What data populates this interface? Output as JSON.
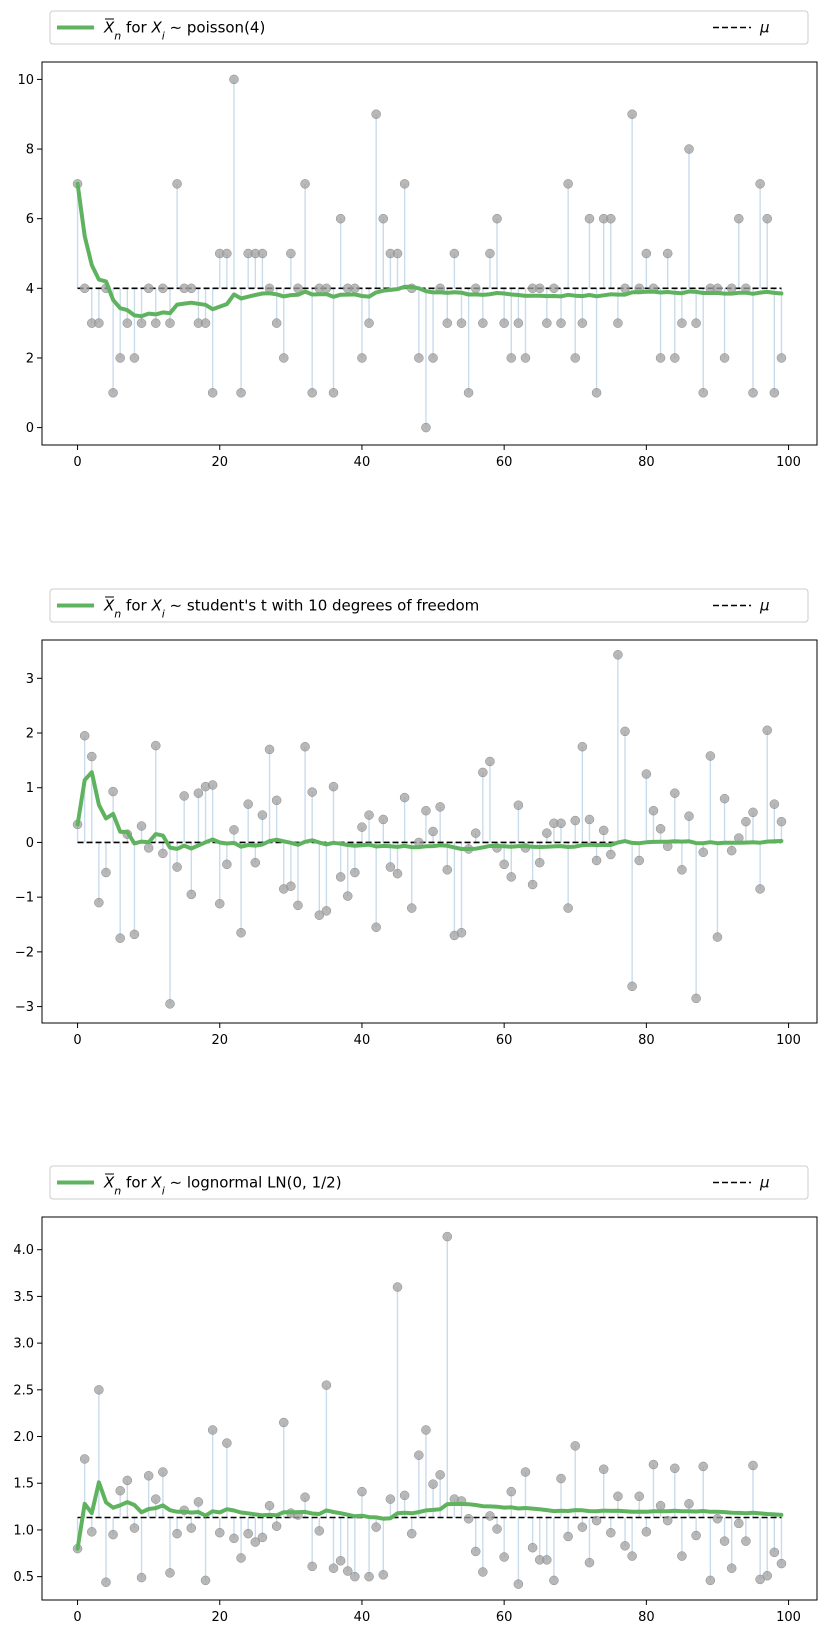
{
  "colors": {
    "mean_line": "#5fb35f",
    "stem": "#c9dcec",
    "marker": "#a0a0a0",
    "mu_line": "#000000"
  },
  "chart_data": [
    {
      "type": "stem+line",
      "legend": {
        "mean_prefix": "X",
        "mean_sub": "n",
        "mean_for": " for ",
        "xi": "X",
        "xi_sub": "i",
        "dist": " ∼ poisson(4)",
        "mu_label": "μ"
      },
      "mu": 4,
      "xlim": [
        -5,
        104
      ],
      "ylim": [
        -0.5,
        10.5
      ],
      "xticks": [
        0,
        20,
        40,
        60,
        80,
        100
      ],
      "yticks": [
        0,
        2,
        4,
        6,
        8,
        10
      ],
      "ytick_labels": [
        "0",
        "2",
        "4",
        "6",
        "8",
        "10"
      ],
      "samples": [
        7,
        4,
        3,
        3,
        4,
        1,
        2,
        3,
        2,
        3,
        4,
        3,
        4,
        3,
        7,
        4,
        4,
        3,
        3,
        1,
        5,
        5,
        10,
        1,
        5,
        5,
        5,
        4,
        3,
        2,
        5,
        4,
        7,
        1,
        4,
        4,
        1,
        6,
        4,
        4,
        2,
        3,
        9,
        6,
        5,
        5,
        7,
        4,
        2,
        0,
        2,
        4,
        3,
        5,
        3,
        1,
        4,
        3,
        5,
        6,
        3,
        2,
        3,
        2,
        4,
        4,
        3,
        4,
        3,
        7,
        2,
        3,
        6,
        1,
        6,
        6,
        3,
        4,
        9,
        4,
        5,
        4,
        2,
        5,
        2,
        3,
        8,
        3,
        1,
        4,
        4,
        2,
        4,
        6,
        4,
        1,
        7,
        6,
        1,
        2
      ]
    },
    {
      "type": "stem+line",
      "legend": {
        "mean_prefix": "X",
        "mean_sub": "n",
        "mean_for": " for ",
        "xi": "X",
        "xi_sub": "i",
        "dist": " ∼ student's t with 10 degrees of freedom",
        "mu_label": "μ"
      },
      "mu": 0,
      "xlim": [
        -5,
        104
      ],
      "ylim": [
        -3.3,
        3.7
      ],
      "xticks": [
        0,
        20,
        40,
        60,
        80,
        100
      ],
      "yticks": [
        -3,
        -2,
        -1,
        0,
        1,
        2,
        3
      ],
      "ytick_labels": [
        "−3",
        "−2",
        "−1",
        "0",
        "1",
        "2",
        "3"
      ],
      "samples": [
        0.33,
        1.95,
        1.57,
        -1.1,
        -0.55,
        0.93,
        -1.75,
        0.15,
        -1.68,
        0.3,
        -0.1,
        1.77,
        -0.2,
        -2.95,
        -0.45,
        0.85,
        -0.95,
        0.9,
        1.02,
        1.05,
        -1.12,
        -0.4,
        0.23,
        -1.65,
        0.7,
        -0.37,
        0.5,
        1.7,
        0.77,
        -0.85,
        -0.8,
        -1.15,
        1.75,
        0.92,
        -1.33,
        -1.25,
        1.02,
        -0.63,
        -0.98,
        -0.55,
        0.28,
        0.5,
        -1.55,
        0.42,
        -0.45,
        -0.57,
        0.82,
        -1.2,
        0.0,
        0.58,
        0.2,
        0.65,
        -0.5,
        -1.7,
        -1.65,
        -0.12,
        0.17,
        1.28,
        1.48,
        -0.1,
        -0.4,
        -0.63,
        0.68,
        -0.1,
        -0.77,
        -0.37,
        0.17,
        0.35,
        0.35,
        -1.2,
        0.4,
        1.75,
        0.42,
        -0.33,
        0.22,
        -0.22,
        3.43,
        2.03,
        -2.63,
        -0.33,
        1.25,
        0.58,
        0.25,
        -0.07,
        0.9,
        -0.5,
        0.48,
        -2.85,
        -0.18,
        1.58,
        -1.73,
        0.8,
        -0.15,
        0.08,
        0.38,
        0.55,
        -0.85,
        2.05,
        0.7,
        0.38
      ]
    },
    {
      "type": "stem+line",
      "legend": {
        "mean_prefix": "X",
        "mean_sub": "n",
        "mean_for": " for ",
        "xi": "X",
        "xi_sub": "i",
        "dist": " ∼ lognormal LN(0, 1/2)",
        "mu_label": "μ"
      },
      "mu": 1.1331,
      "xlim": [
        -5,
        104
      ],
      "ylim": [
        0.25,
        4.35
      ],
      "xticks": [
        0,
        20,
        40,
        60,
        80,
        100
      ],
      "yticks": [
        0.5,
        1.0,
        1.5,
        2.0,
        2.5,
        3.0,
        3.5,
        4.0
      ],
      "ytick_labels": [
        "0.5",
        "1.0",
        "1.5",
        "2.0",
        "2.5",
        "3.0",
        "3.5",
        "4.0"
      ],
      "samples": [
        0.8,
        1.76,
        0.98,
        2.5,
        0.44,
        0.95,
        1.42,
        1.53,
        1.02,
        0.49,
        1.58,
        1.33,
        1.62,
        0.54,
        0.96,
        1.21,
        1.02,
        1.3,
        0.46,
        2.07,
        0.97,
        1.93,
        0.91,
        0.7,
        0.96,
        0.87,
        0.92,
        1.26,
        1.04,
        2.15,
        1.18,
        1.16,
        1.35,
        0.61,
        0.99,
        2.55,
        0.59,
        0.67,
        0.56,
        0.5,
        1.41,
        0.5,
        1.03,
        0.52,
        1.33,
        3.6,
        1.37,
        0.96,
        1.8,
        2.07,
        1.49,
        1.59,
        4.14,
        1.33,
        1.31,
        1.12,
        0.77,
        0.55,
        1.15,
        1.01,
        0.71,
        1.41,
        0.42,
        1.62,
        0.81,
        0.68,
        0.68,
        0.46,
        1.55,
        0.93,
        1.9,
        1.03,
        0.65,
        1.1,
        1.65,
        0.97,
        1.36,
        0.83,
        0.72,
        1.36,
        0.98,
        1.7,
        1.26,
        1.1,
        1.66,
        0.72,
        1.28,
        0.94,
        1.68,
        0.46,
        1.12,
        0.88,
        0.59,
        1.07,
        0.88,
        1.69,
        0.47,
        0.51,
        0.76,
        0.64
      ]
    }
  ]
}
